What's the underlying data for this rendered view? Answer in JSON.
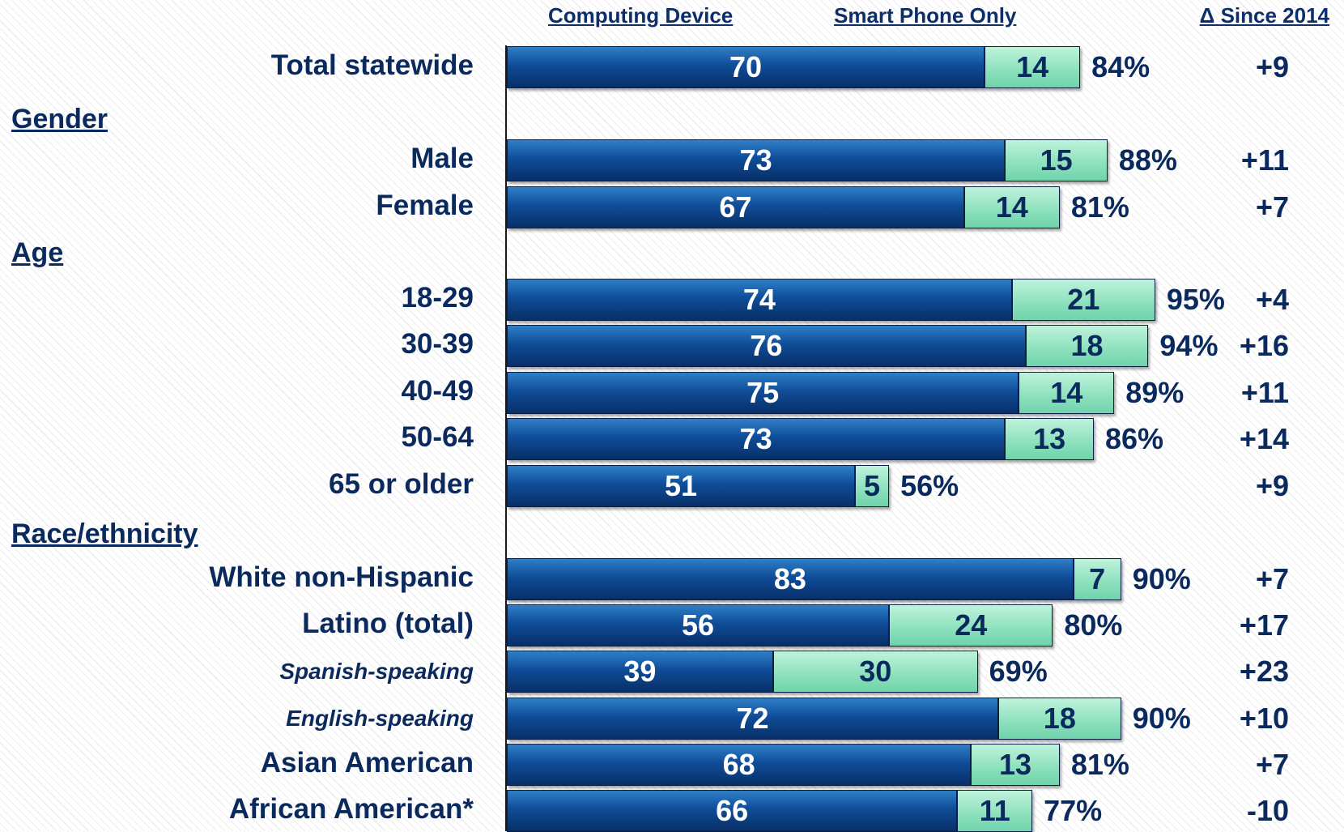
{
  "headers": {
    "computing_device": "Computing Device",
    "smart_phone_only": "Smart Phone Only",
    "delta": "Δ Since 2014"
  },
  "colors": {
    "computing_device": "#0f4d98",
    "smart_phone_only": "#8fe2be",
    "text": "#0a2a5e"
  },
  "chart_data": {
    "type": "bar",
    "orientation": "horizontal",
    "stacked": true,
    "series": [
      {
        "name": "Computing Device"
      },
      {
        "name": "Smart Phone Only"
      }
    ],
    "xlim": [
      0,
      100
    ],
    "rows": [
      {
        "label": "Total statewide",
        "style": "main",
        "cd": 70,
        "sp": 14,
        "total": "84%",
        "delta": "+9"
      },
      {
        "section": "Gender"
      },
      {
        "label": "Male",
        "style": "main",
        "cd": 73,
        "sp": 15,
        "total": "88%",
        "delta": "+11"
      },
      {
        "label": "Female",
        "style": "main",
        "cd": 67,
        "sp": 14,
        "total": "81%",
        "delta": "+7"
      },
      {
        "section": "Age"
      },
      {
        "label": "18-29",
        "style": "main",
        "cd": 74,
        "sp": 21,
        "total": "95%",
        "delta": "+4"
      },
      {
        "label": "30-39",
        "style": "main",
        "cd": 76,
        "sp": 18,
        "total": "94%",
        "delta": "+16"
      },
      {
        "label": "40-49",
        "style": "main",
        "cd": 75,
        "sp": 14,
        "total": "89%",
        "delta": "+11"
      },
      {
        "label": "50-64",
        "style": "main",
        "cd": 73,
        "sp": 13,
        "total": "86%",
        "delta": "+14"
      },
      {
        "label": "65 or older",
        "style": "main",
        "cd": 51,
        "sp": 5,
        "total": "56%",
        "delta": "+9"
      },
      {
        "section": "Race/ethnicity"
      },
      {
        "label": "White non-Hispanic",
        "style": "main",
        "cd": 83,
        "sp": 7,
        "total": "90%",
        "delta": "+7"
      },
      {
        "label": "Latino (total)",
        "style": "main",
        "cd": 56,
        "sp": 24,
        "total": "80%",
        "delta": "+17"
      },
      {
        "label": "Spanish-speaking",
        "style": "sub",
        "cd": 39,
        "sp": 30,
        "total": "69%",
        "delta": "+23"
      },
      {
        "label": "English-speaking",
        "style": "sub",
        "cd": 72,
        "sp": 18,
        "total": "90%",
        "delta": "+10"
      },
      {
        "label": "Asian American",
        "style": "main",
        "cd": 68,
        "sp": 13,
        "total": "81%",
        "delta": "+7"
      },
      {
        "label": "African American*",
        "style": "main",
        "cd": 66,
        "sp": 11,
        "total": "77%",
        "delta": "-10"
      }
    ]
  }
}
